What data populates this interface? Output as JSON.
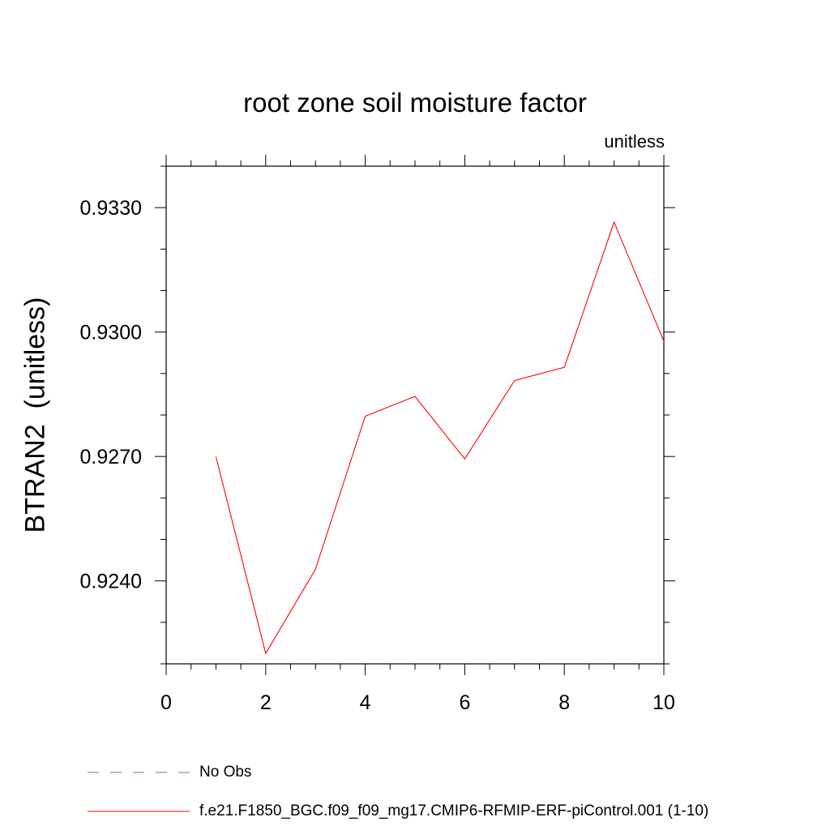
{
  "chart_data": {
    "type": "line",
    "title": "root zone soil moisture factor",
    "units_label": "unitless",
    "ylabel": "BTRAN2  (unitless)",
    "xlabel": "",
    "xlim": [
      0,
      10
    ],
    "ylim": [
      0.922,
      0.934
    ],
    "xticks": [
      0,
      2,
      4,
      6,
      8,
      10
    ],
    "xtick_labels": [
      "0",
      "2",
      "4",
      "6",
      "8",
      "10"
    ],
    "yticks": [
      0.924,
      0.927,
      0.93,
      0.933
    ],
    "ytick_labels": [
      "0.9240",
      "0.9270",
      "0.9300",
      "0.9330"
    ],
    "grid": false,
    "series": [
      {
        "name": "f.e21.F1850_BGC.f09_f09_mg17.CMIP6-RFMIP-ERF-piControl.001 (1-10)",
        "color": "#ff0000",
        "style": "solid",
        "x": [
          1,
          2,
          3,
          4,
          5,
          6,
          7,
          8,
          9,
          10
        ],
        "y": [
          0.927,
          0.92225,
          0.92428,
          0.92797,
          0.92845,
          0.92694,
          0.92883,
          0.92915,
          0.93265,
          0.92978
        ]
      }
    ],
    "legend": [
      {
        "label": "No Obs",
        "color": "#7b68b0",
        "style": "dashed"
      },
      {
        "label": "f.e21.F1850_BGC.f09_f09_mg17.CMIP6-RFMIP-ERF-piControl.001 (1-10)",
        "color": "#ff0000",
        "style": "solid"
      }
    ],
    "legend_position": "bottom-left"
  }
}
